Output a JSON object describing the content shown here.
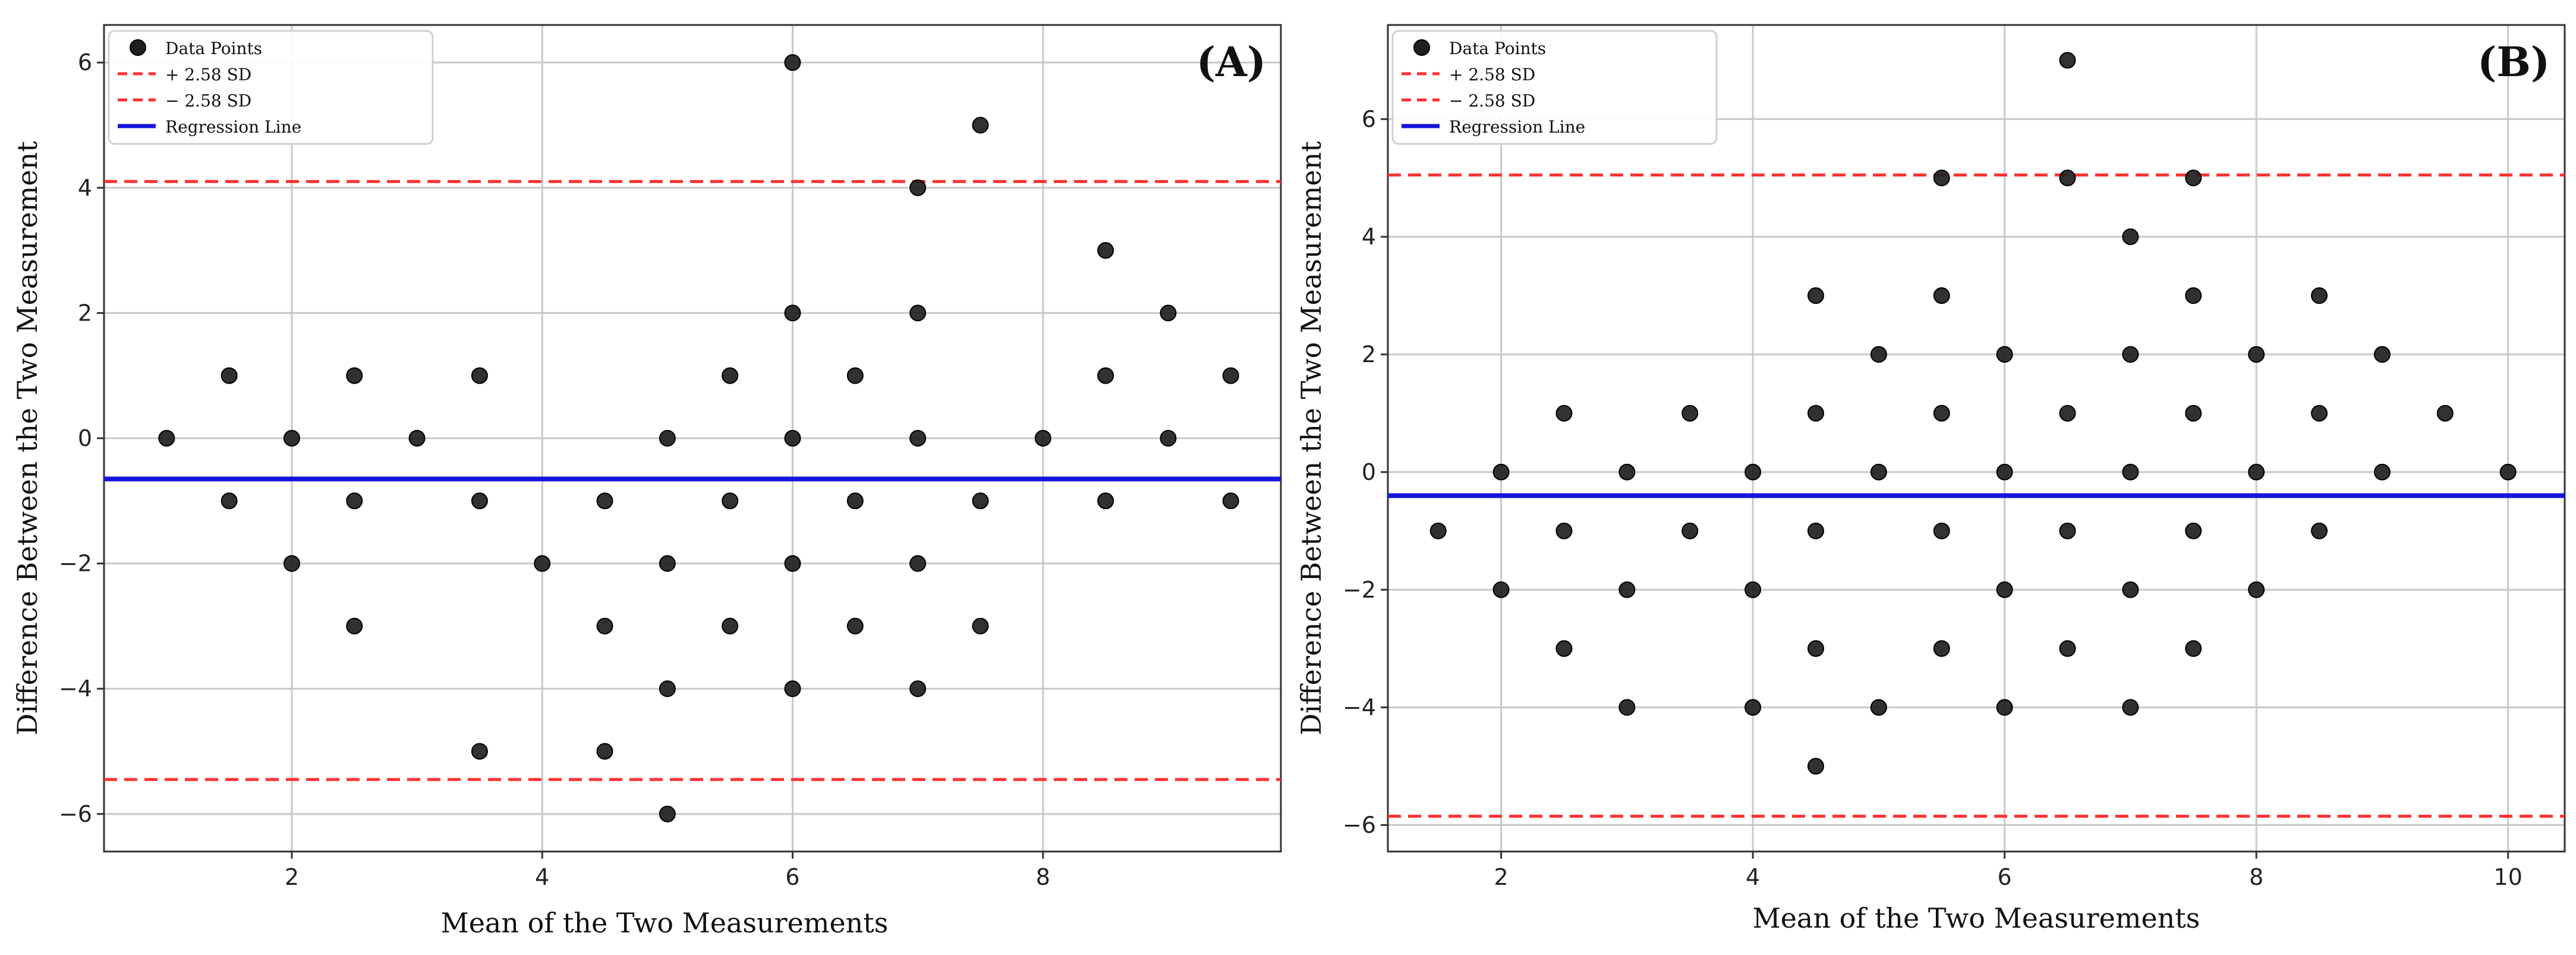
{
  "colors": {
    "point_fill": "#1f1f1f",
    "point_edge": "#000000",
    "sd_line": "#ff3030",
    "regression_line": "#1515dd",
    "grid": "#c8c8c8",
    "axis": "#333333"
  },
  "legend": {
    "points": "Data Points",
    "upper": "+ 2.58 SD",
    "lower": "− 2.58 SD",
    "regression": "Regression Line"
  },
  "chart_data": [
    {
      "type": "scatter",
      "panel_label": "(A)",
      "xlabel": "Mean of the Two Measurements",
      "ylabel": "Difference Between the Two Measurement",
      "xlim": [
        0.5,
        9.9
      ],
      "ylim": [
        -6.6,
        6.6
      ],
      "xticks": [
        2,
        4,
        6,
        8
      ],
      "yticks": [
        -6,
        -4,
        -2,
        0,
        2,
        4,
        6
      ],
      "xtick_labels": [
        "2",
        "4",
        "6",
        "8"
      ],
      "ytick_labels": [
        "−6",
        "−4",
        "−2",
        "0",
        "2",
        "4",
        "6"
      ],
      "upper_sd": 4.1,
      "lower_sd": -5.45,
      "regression": {
        "x": [
          0.5,
          9.9
        ],
        "y": [
          -0.65,
          -0.65
        ]
      },
      "points": [
        [
          1,
          0
        ],
        [
          1.5,
          1
        ],
        [
          1.5,
          -1
        ],
        [
          2,
          0
        ],
        [
          2,
          -2
        ],
        [
          2.5,
          1
        ],
        [
          2.5,
          -1
        ],
        [
          2.5,
          -3
        ],
        [
          3,
          0
        ],
        [
          3.5,
          1
        ],
        [
          3.5,
          -1
        ],
        [
          3.5,
          -5
        ],
        [
          4,
          -2
        ],
        [
          4.5,
          -1
        ],
        [
          4.5,
          -3
        ],
        [
          4.5,
          -5
        ],
        [
          5,
          0
        ],
        [
          5,
          -2
        ],
        [
          5,
          -4
        ],
        [
          5,
          -6
        ],
        [
          5.5,
          1
        ],
        [
          5.5,
          -1
        ],
        [
          5.5,
          -3
        ],
        [
          6,
          6
        ],
        [
          6,
          2
        ],
        [
          6,
          0
        ],
        [
          6,
          -2
        ],
        [
          6,
          -4
        ],
        [
          6.5,
          1
        ],
        [
          6.5,
          -1
        ],
        [
          6.5,
          -3
        ],
        [
          7,
          4
        ],
        [
          7,
          2
        ],
        [
          7,
          0
        ],
        [
          7,
          -2
        ],
        [
          7,
          -4
        ],
        [
          7.5,
          5
        ],
        [
          7.5,
          -1
        ],
        [
          7.5,
          -3
        ],
        [
          8,
          0
        ],
        [
          8.5,
          3
        ],
        [
          8.5,
          1
        ],
        [
          8.5,
          -1
        ],
        [
          9,
          2
        ],
        [
          9,
          0
        ],
        [
          9.5,
          1
        ],
        [
          9.5,
          -1
        ]
      ]
    },
    {
      "type": "scatter",
      "panel_label": "(B)",
      "xlabel": "Mean of the Two Measurements",
      "ylabel": "Difference Between the Two Measurement",
      "xlim": [
        1.1,
        10.45
      ],
      "ylim": [
        -6.45,
        7.6
      ],
      "xticks": [
        2,
        4,
        6,
        8,
        10
      ],
      "yticks": [
        -6,
        -4,
        -2,
        0,
        2,
        4,
        6
      ],
      "xtick_labels": [
        "2",
        "4",
        "6",
        "8",
        "10"
      ],
      "ytick_labels": [
        "−6",
        "−4",
        "−2",
        "0",
        "2",
        "4",
        "6"
      ],
      "upper_sd": 5.05,
      "lower_sd": -5.85,
      "regression": {
        "x": [
          1.1,
          10.45
        ],
        "y": [
          -0.4,
          -0.4
        ]
      },
      "points": [
        [
          1.5,
          -1
        ],
        [
          2,
          0
        ],
        [
          2,
          -2
        ],
        [
          2.5,
          1
        ],
        [
          2.5,
          -1
        ],
        [
          2.5,
          -3
        ],
        [
          3,
          0
        ],
        [
          3,
          -2
        ],
        [
          3,
          -4
        ],
        [
          3.5,
          1
        ],
        [
          3.5,
          -1
        ],
        [
          4,
          0
        ],
        [
          4,
          -2
        ],
        [
          4,
          -4
        ],
        [
          4.5,
          3
        ],
        [
          4.5,
          1
        ],
        [
          4.5,
          -1
        ],
        [
          4.5,
          -3
        ],
        [
          4.5,
          -5
        ],
        [
          5,
          2
        ],
        [
          5,
          0
        ],
        [
          5,
          -4
        ],
        [
          5.5,
          5
        ],
        [
          5.5,
          3
        ],
        [
          5.5,
          1
        ],
        [
          5.5,
          -1
        ],
        [
          5.5,
          -3
        ],
        [
          6,
          2
        ],
        [
          6,
          0
        ],
        [
          6,
          -2
        ],
        [
          6,
          -4
        ],
        [
          6.5,
          7
        ],
        [
          6.5,
          5
        ],
        [
          6.5,
          1
        ],
        [
          6.5,
          -1
        ],
        [
          6.5,
          -3
        ],
        [
          7,
          4
        ],
        [
          7,
          2
        ],
        [
          7,
          0
        ],
        [
          7,
          -2
        ],
        [
          7,
          -4
        ],
        [
          7.5,
          5
        ],
        [
          7.5,
          3
        ],
        [
          7.5,
          1
        ],
        [
          7.5,
          -1
        ],
        [
          7.5,
          -3
        ],
        [
          8,
          2
        ],
        [
          8,
          0
        ],
        [
          8,
          -2
        ],
        [
          8.5,
          3
        ],
        [
          8.5,
          1
        ],
        [
          8.5,
          -1
        ],
        [
          9,
          2
        ],
        [
          9,
          0
        ],
        [
          9.5,
          1
        ],
        [
          10,
          0
        ]
      ]
    }
  ]
}
